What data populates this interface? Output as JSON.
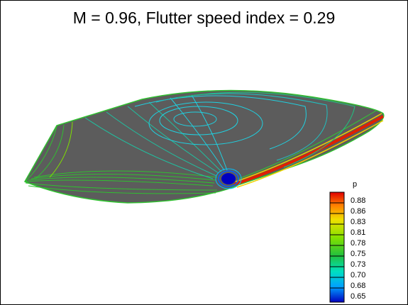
{
  "title": "M = 0.96, Flutter speed index = 0.29",
  "legend": {
    "title": "p",
    "levels": [
      "0.88",
      "0.86",
      "0.83",
      "0.81",
      "0.78",
      "0.75",
      "0.73",
      "0.70",
      "0.68",
      "0.65"
    ]
  },
  "colors": {
    "surface": "#5a5a5a",
    "high": "#e02000",
    "mid": "#40d040",
    "low": "#0010c0"
  }
}
